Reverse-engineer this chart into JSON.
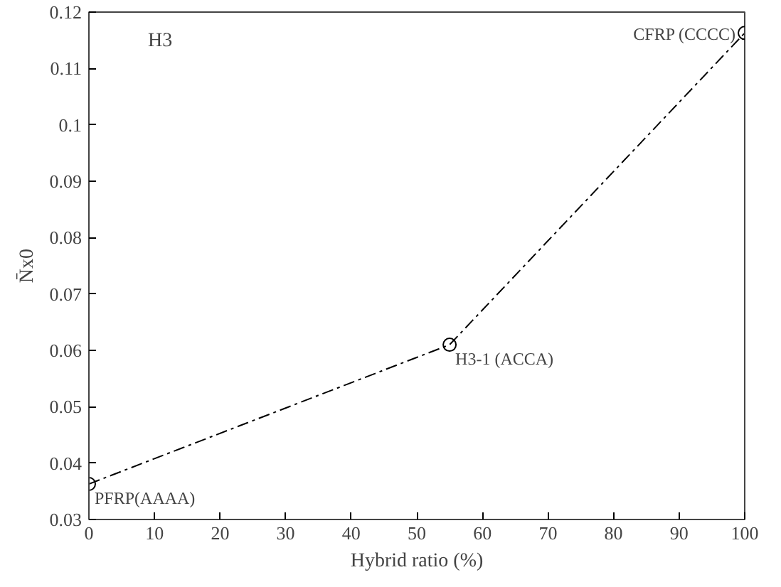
{
  "chart_data": {
    "type": "line",
    "xlabel": "Hybrid ratio (%)",
    "ylabel": "N̄x0",
    "x": [
      0,
      55,
      100
    ],
    "series": [
      {
        "color": "#000000",
        "values": [
          0.0363,
          0.061,
          0.1163
        ]
      }
    ],
    "xlim": [
      0,
      100
    ],
    "ylim": [
      0.03,
      0.12
    ],
    "xticks": [
      0,
      10,
      20,
      30,
      40,
      50,
      60,
      70,
      80,
      90,
      100
    ],
    "yticks": [
      0.03,
      0.04,
      0.05,
      0.06,
      0.07,
      0.08,
      0.09,
      0.1,
      0.11,
      0.12
    ],
    "annotations": [
      "H3",
      {
        "text": "PFRP(AAAA)",
        "x": 0,
        "y": 0.0363
      },
      {
        "text": "H3-1 (ACCA)",
        "x": 55,
        "y": 0.061
      },
      {
        "text": "CFRP (CCCC)",
        "x": 100,
        "y": 0.1163
      }
    ],
    "marker": "circle",
    "line_style": "dashed",
    "grid": false
  }
}
